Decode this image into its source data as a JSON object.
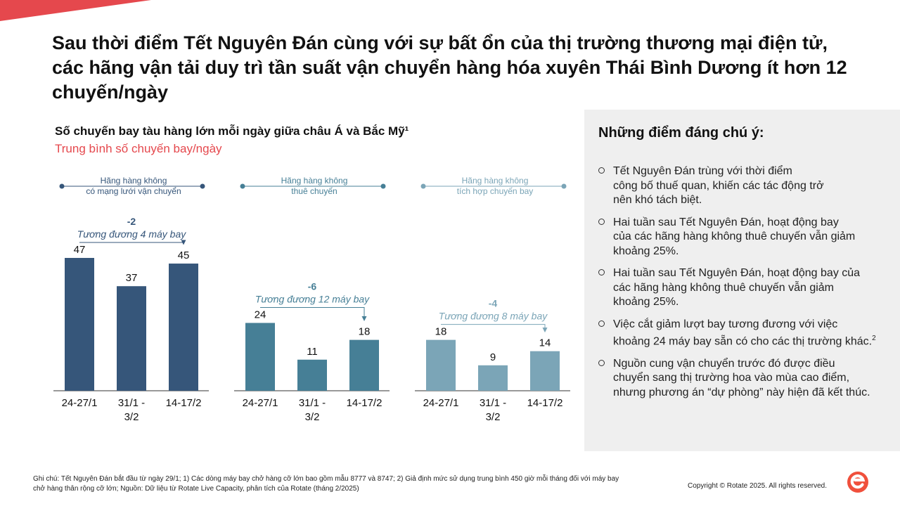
{
  "title": "Sau thời điểm Tết Nguyên Đán cùng với sự bất ổn của thị trường thương mại điện tử, các hãng vận tải duy trì tần suất vận chuyển hàng hóa xuyên Thái Bình Dương ít hơn 12 chuyến/ngày",
  "chart_data": {
    "type": "bar",
    "title": "Số chuyến bay tàu hàng lớn mỗi ngày giữa châu Á và Bắc Mỹ¹",
    "subtitle": "Trung bình số chuyến bay/ngày",
    "categories": [
      "24-27/1",
      "31/1 - 3/2",
      "14-17/2"
    ],
    "ylim": [
      0,
      50
    ],
    "grid": false,
    "series": [
      {
        "name": "Hãng hàng không có mạng lưới vận chuyển",
        "header": [
          "Hãng hàng không",
          "có mạng lưới vận chuyển"
        ],
        "values": [
          47,
          37,
          45
        ],
        "color": "#36567a",
        "delta": "-2",
        "delta_note": "Tương đương 4 máy bay"
      },
      {
        "name": "Hãng hàng không thuê chuyến",
        "header": [
          "Hãng hàng không",
          "thuê chuyến"
        ],
        "values": [
          24,
          11,
          18
        ],
        "color": "#467f96",
        "delta": "-6",
        "delta_note": "Tương đương 12 máy bay"
      },
      {
        "name": "Hãng hàng không tích hợp chuyến bay",
        "header": [
          "Hãng hàng không",
          "tích hợp chuyến bay"
        ],
        "values": [
          18,
          9,
          14
        ],
        "color": "#7ba5b7",
        "delta": "-4",
        "delta_note": "Tương đương 8 máy bay"
      }
    ]
  },
  "panel": {
    "title": "Những điểm đáng chú ý:",
    "notes": [
      {
        "lines": [
          "Tết Nguyên Đán trùng với thời điểm",
          "công bố thuế quan, khiến các tác động trở",
          "nên khó tách biệt."
        ],
        "sup": ""
      },
      {
        "lines": [
          "Hai tuần sau Tết Nguyên Đán, hoạt động bay",
          "của các hãng hàng không thuê chuyến vẫn giảm",
          "khoảng 25%."
        ],
        "sup": ""
      },
      {
        "lines": [
          "Hai tuần sau Tết Nguyên Đán, hoạt động bay của",
          "các hãng hàng không thuê chuyến vẫn giảm",
          "khoảng 25%."
        ],
        "sup": ""
      },
      {
        "lines": [
          "Việc cắt giảm lượt bay tương đương với việc",
          "khoảng 24 máy bay sẵn có cho các thị trường khác."
        ],
        "sup": "2"
      },
      {
        "lines": [
          "Nguồn cung vận chuyển trước đó được điều",
          "chuyển sang thị trường hoa vào mùa cao điểm,",
          "nhưng phương án “dự phòng” này hiện đã kết thúc."
        ],
        "sup": ""
      }
    ]
  },
  "footnote": [
    "Ghi chú: Tết Nguyên Đán bắt đầu từ ngày 29/1; 1) Các dòng máy bay chở hàng cỡ lớn bao gồm mẫu 8777 và 8747;  2) Giả định mức sử dụng trung bình 450 giờ mỗi tháng đối với máy bay",
    "chở hàng thân rộng cỡ lớn; Nguồn: Dữ liệu từ Rotate Live Capacity, phân tích của Rotate (tháng 2/2025)"
  ],
  "copyright": "Copyright © Rotate 2025. All rights reserved.",
  "colors": {
    "accent": "#e5484d",
    "logo": "#f0503c",
    "panel_bg": "#efefef"
  }
}
